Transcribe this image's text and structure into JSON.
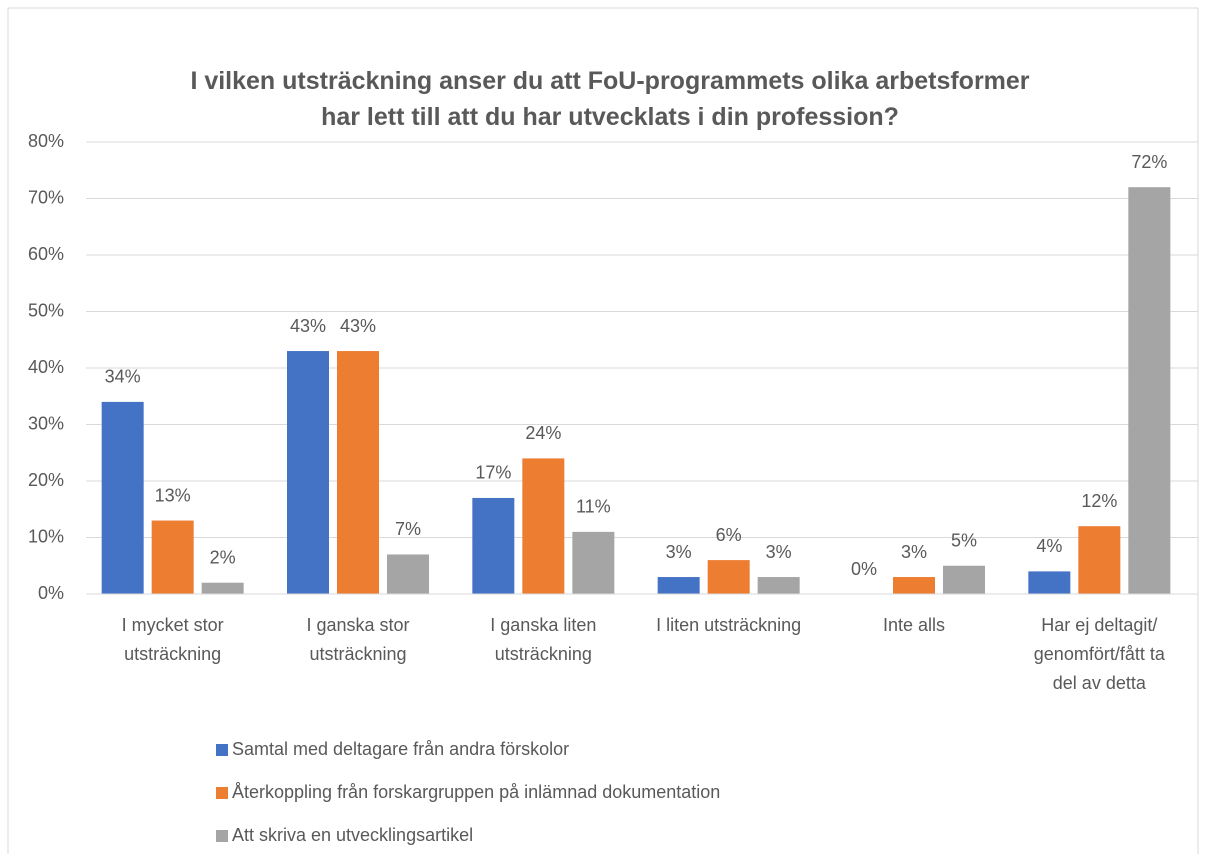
{
  "chart_data": {
    "type": "bar",
    "title": "I vilken utsträckning anser du att FoU-programmets olika arbetsformer\nhar lett till att du har utvecklats i din profession?",
    "categories": [
      "I mycket stor\nutsträckning",
      "I ganska stor\nutsträckning",
      "I ganska liten\nutsträckning",
      "I liten utsträckning",
      "Inte alls",
      "Har ej deltagit/\ngenomfört/fått ta\ndel av detta"
    ],
    "series": [
      {
        "name": "Samtal med deltagare från andra förskolor",
        "color": "#4472c4",
        "values": [
          34,
          43,
          17,
          3,
          0,
          4
        ],
        "value_labels": [
          "34%",
          "43%",
          "17%",
          "3%",
          "0%",
          "4%"
        ]
      },
      {
        "name": "Återkoppling från forskargruppen på inlämnad dokumentation",
        "color": "#ed7d31",
        "values": [
          13,
          43,
          24,
          6,
          3,
          12
        ],
        "value_labels": [
          "13%",
          "43%",
          "24%",
          "6%",
          "3%",
          "12%"
        ]
      },
      {
        "name": "Att skriva en utvecklingsartikel",
        "color": "#a5a5a5",
        "values": [
          2,
          7,
          11,
          3,
          5,
          72
        ],
        "value_labels": [
          "2%",
          "7%",
          "11%",
          "3%",
          "5%",
          "72%"
        ]
      }
    ],
    "ylim": [
      0,
      80
    ],
    "yticks": [
      {
        "value": 0,
        "label": "0%"
      },
      {
        "value": 10,
        "label": "10%"
      },
      {
        "value": 20,
        "label": "20%"
      },
      {
        "value": 30,
        "label": "30%"
      },
      {
        "value": 40,
        "label": "40%"
      },
      {
        "value": 50,
        "label": "50%"
      },
      {
        "value": 60,
        "label": "60%"
      },
      {
        "value": 70,
        "label": "70%"
      },
      {
        "value": 80,
        "label": "80%"
      }
    ],
    "grid": true,
    "legend": "bottom"
  }
}
